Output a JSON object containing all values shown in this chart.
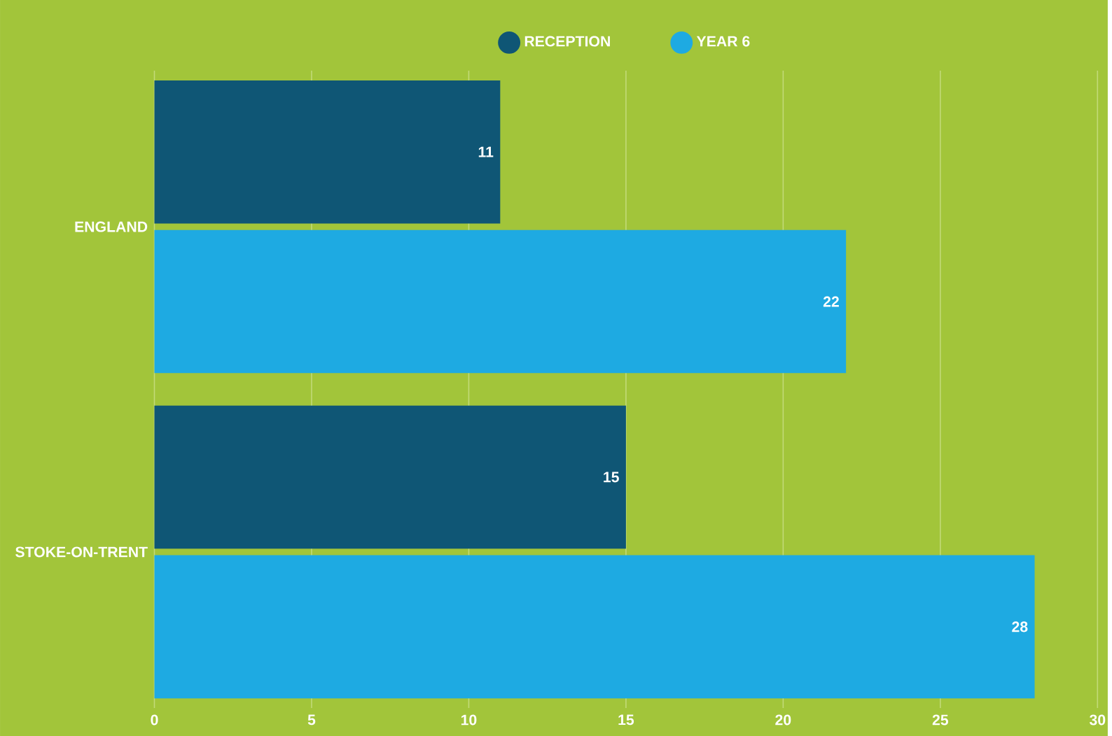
{
  "chart_data": {
    "type": "bar",
    "orientation": "horizontal",
    "categories": [
      "ENGLAND",
      "STOKE-ON-TRENT"
    ],
    "series": [
      {
        "name": "RECEPTION",
        "color": "#0f5675",
        "values": [
          11,
          15
        ]
      },
      {
        "name": "YEAR 6",
        "color": "#1eaae2",
        "values": [
          22,
          28
        ]
      }
    ],
    "xlim": [
      0,
      30
    ],
    "xticks": [
      0,
      5,
      10,
      15,
      20,
      25,
      30
    ],
    "grid": "x",
    "legend": "top",
    "data_labels": true
  }
}
